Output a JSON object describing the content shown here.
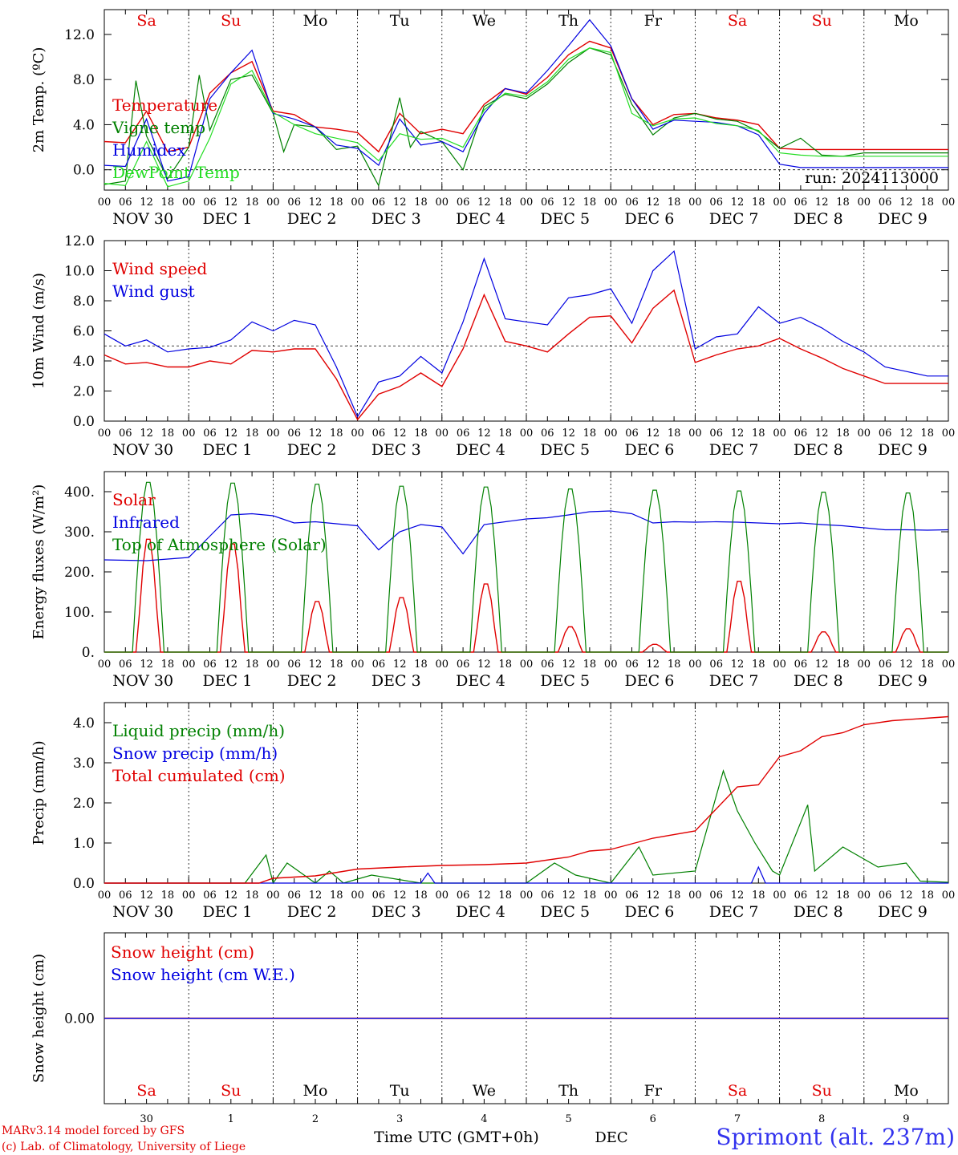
{
  "days": [
    "Sa",
    "Su",
    "Mo",
    "Tu",
    "We",
    "Th",
    "Fr",
    "Sa",
    "Su",
    "Mo"
  ],
  "weekend_days": [
    0,
    1,
    7,
    8
  ],
  "hour_labels": [
    "00",
    "06",
    "12",
    "18"
  ],
  "last_hour_label": "00",
  "date_labels": [
    "NOV 30",
    "DEC  1",
    "DEC  2",
    "DEC  3",
    "DEC  4",
    "DEC  5",
    "DEC  6",
    "DEC  7",
    "DEC  8",
    "DEC  9"
  ],
  "bottom_day_numbers": [
    "30",
    "1",
    "2",
    "3",
    "4",
    "5",
    "6",
    "7",
    "8",
    "9"
  ],
  "bottom_month": "DEC",
  "xlabel": "Time UTC (GMT+0h)",
  "run_label": "run: 2024113000",
  "location": "Sprimont (alt. 237m)",
  "credit_line1": "MARv3.14 model forced by GFS",
  "credit_line2": "(c) Lab. of Climatology, University of Liege",
  "colors": {
    "red": "#e00000",
    "green": "#008000",
    "blue": "#0000e0",
    "lightgreen": "#22dd22",
    "weekend": "#e00000",
    "weekday": "#000000"
  },
  "chart_data": [
    {
      "type": "line",
      "ylabel": "2m Temp. (ºC)",
      "ylim": [
        -1.8,
        14.2
      ],
      "yticks": [
        0,
        4,
        8,
        12
      ],
      "ytick_labels": [
        "0.0",
        "4.0",
        "8.0",
        "12.0"
      ],
      "dashed_y": 0,
      "x_unit": "hours since 2024-11-30 00 UTC",
      "series": [
        {
          "name": "Temperature",
          "color": "red",
          "x": [
            0,
            6,
            12,
            18,
            24,
            30,
            36,
            42,
            48,
            54,
            60,
            66,
            72,
            78,
            84,
            90,
            96,
            102,
            108,
            114,
            120,
            126,
            132,
            138,
            144,
            150,
            156,
            162,
            168,
            174,
            180,
            186,
            192,
            198,
            204,
            210,
            216,
            222,
            228,
            234,
            240
          ],
          "y": [
            2.5,
            2.4,
            5.2,
            1.6,
            2.0,
            6.8,
            8.6,
            9.6,
            5.2,
            4.9,
            3.8,
            3.6,
            3.3,
            1.6,
            5.0,
            3.2,
            3.6,
            3.2,
            5.8,
            7.2,
            6.7,
            8.2,
            10.2,
            11.4,
            10.8,
            6.3,
            4.0,
            4.9,
            5.0,
            4.6,
            4.4,
            4.0,
            1.9,
            1.8,
            1.8,
            1.8,
            1.8,
            1.8,
            1.8,
            1.8,
            1.8
          ]
        },
        {
          "name": "Vigne temp",
          "color": "green",
          "x": [
            0,
            6,
            9,
            12,
            18,
            24,
            27,
            30,
            36,
            42,
            48,
            51,
            54,
            60,
            66,
            72,
            78,
            84,
            87,
            90,
            96,
            102,
            108,
            114,
            120,
            126,
            132,
            138,
            144,
            150,
            156,
            162,
            168,
            174,
            180,
            186,
            192,
            198,
            204,
            210,
            216,
            222,
            228,
            234,
            240
          ],
          "y": [
            -1.3,
            -1.0,
            7.9,
            3.0,
            -0.8,
            2.0,
            8.4,
            3.5,
            8.0,
            8.4,
            5.0,
            1.6,
            4.0,
            3.8,
            1.8,
            2.1,
            -1.4,
            6.4,
            2.0,
            3.4,
            2.5,
            0.0,
            5.6,
            6.7,
            6.3,
            7.6,
            9.5,
            10.8,
            10.2,
            5.8,
            3.1,
            4.6,
            5.0,
            4.5,
            4.3,
            3.4,
            1.9,
            2.8,
            1.3,
            1.2,
            1.5,
            1.5,
            1.5,
            1.5,
            1.5
          ]
        },
        {
          "name": "Humidex",
          "color": "blue",
          "x": [
            0,
            6,
            12,
            18,
            24,
            30,
            36,
            42,
            48,
            54,
            60,
            66,
            72,
            78,
            84,
            90,
            96,
            102,
            108,
            114,
            120,
            126,
            132,
            138,
            144,
            150,
            156,
            162,
            168,
            174,
            180,
            186,
            192,
            198,
            204,
            210,
            216,
            222,
            228,
            234,
            240
          ],
          "y": [
            0.4,
            0.3,
            4.5,
            -1.0,
            -0.6,
            6.3,
            8.6,
            10.6,
            5.0,
            4.5,
            3.8,
            2.2,
            1.9,
            0.4,
            4.5,
            2.2,
            2.5,
            1.6,
            5.0,
            7.2,
            6.8,
            8.8,
            11.0,
            13.3,
            11.0,
            6.3,
            3.6,
            4.4,
            4.3,
            4.2,
            3.9,
            3.1,
            0.5,
            0.2,
            0.2,
            0.2,
            0.2,
            0.2,
            0.2,
            0.2,
            0.2
          ]
        },
        {
          "name": "DewPoint Temp",
          "color": "lightgreen",
          "x": [
            0,
            6,
            12,
            18,
            24,
            30,
            36,
            42,
            48,
            54,
            60,
            66,
            72,
            78,
            84,
            90,
            96,
            102,
            108,
            114,
            120,
            126,
            132,
            138,
            144,
            150,
            156,
            162,
            168,
            174,
            180,
            186,
            192,
            198,
            204,
            210,
            216,
            222,
            228,
            234,
            240
          ],
          "y": [
            -1.2,
            -1.4,
            2.5,
            -1.5,
            -1.0,
            2.8,
            7.6,
            8.8,
            5.1,
            4.0,
            3.2,
            2.8,
            2.4,
            0.8,
            3.2,
            2.7,
            2.8,
            2.0,
            5.3,
            6.8,
            6.5,
            7.8,
            9.8,
            10.8,
            10.4,
            5.0,
            3.9,
            4.5,
            4.6,
            4.1,
            3.9,
            3.5,
            1.5,
            1.3,
            1.2,
            1.2,
            1.2,
            1.2,
            1.2,
            1.2,
            1.2
          ]
        }
      ]
    },
    {
      "type": "line",
      "ylabel": "10m Wind (m/s)",
      "ylim": [
        0,
        12
      ],
      "yticks": [
        0,
        2,
        4,
        6,
        8,
        10,
        12
      ],
      "ytick_labels": [
        "0.0",
        "2.0",
        "4.0",
        "6.0",
        "8.0",
        "10.0",
        "12.0"
      ],
      "dashed_y": 5,
      "x_unit": "hours since 2024-11-30 00 UTC",
      "series": [
        {
          "name": "Wind speed",
          "color": "red",
          "x": [
            0,
            6,
            12,
            18,
            24,
            30,
            36,
            42,
            48,
            54,
            60,
            66,
            72,
            78,
            84,
            90,
            96,
            102,
            108,
            114,
            120,
            126,
            132,
            138,
            144,
            150,
            156,
            162,
            168,
            174,
            180,
            186,
            192,
            198,
            204,
            210,
            216,
            222,
            228,
            234,
            240
          ],
          "y": [
            4.4,
            3.8,
            3.9,
            3.6,
            3.6,
            4.0,
            3.8,
            4.7,
            4.6,
            4.8,
            4.8,
            2.8,
            0.1,
            1.8,
            2.3,
            3.2,
            2.3,
            4.8,
            8.4,
            5.3,
            5.0,
            4.6,
            5.8,
            6.9,
            7.0,
            5.2,
            7.5,
            8.7,
            3.9,
            4.4,
            4.8,
            5.0,
            5.5,
            4.8,
            4.2,
            3.5,
            3.0,
            2.5,
            2.5,
            2.5,
            2.5
          ]
        },
        {
          "name": "Wind gust",
          "color": "blue",
          "x": [
            0,
            6,
            12,
            18,
            24,
            30,
            36,
            42,
            48,
            54,
            60,
            66,
            72,
            78,
            84,
            90,
            96,
            102,
            108,
            114,
            120,
            126,
            132,
            138,
            144,
            150,
            156,
            162,
            168,
            174,
            180,
            186,
            192,
            198,
            204,
            210,
            216,
            222,
            228,
            234,
            240
          ],
          "y": [
            5.8,
            5.0,
            5.4,
            4.6,
            4.8,
            4.9,
            5.4,
            6.6,
            6.0,
            6.7,
            6.4,
            3.6,
            0.3,
            2.6,
            3.0,
            4.3,
            3.2,
            6.6,
            10.8,
            6.8,
            6.6,
            6.4,
            8.2,
            8.4,
            8.8,
            6.5,
            10.0,
            11.3,
            4.8,
            5.6,
            5.8,
            7.6,
            6.5,
            6.9,
            6.2,
            5.3,
            4.6,
            3.6,
            3.3,
            3.0,
            3.0
          ]
        }
      ]
    },
    {
      "type": "line",
      "ylabel": "Energy fluxes (W/m²)",
      "ylim": [
        0,
        450
      ],
      "yticks": [
        0,
        100,
        200,
        300,
        400
      ],
      "ytick_labels": [
        "0.",
        "100.",
        "200.",
        "300.",
        "400."
      ],
      "x_unit": "hours since 2024-11-30 00 UTC",
      "series": [
        {
          "name": "Solar",
          "color": "red",
          "diurnal_peaks": [
            290,
            278,
            130,
            140,
            175,
            65,
            20,
            182,
            52,
            60
          ]
        },
        {
          "name": "Infrared",
          "color": "blue",
          "x": [
            0,
            12,
            24,
            36,
            42,
            48,
            54,
            60,
            66,
            72,
            78,
            84,
            90,
            96,
            102,
            108,
            114,
            120,
            126,
            132,
            138,
            144,
            150,
            156,
            162,
            168,
            174,
            180,
            186,
            192,
            198,
            204,
            210,
            216,
            222,
            228,
            234,
            240
          ],
          "y": [
            230,
            228,
            236,
            342,
            345,
            340,
            322,
            325,
            320,
            315,
            255,
            300,
            318,
            312,
            245,
            318,
            325,
            332,
            335,
            342,
            350,
            352,
            345,
            322,
            325,
            324,
            325,
            324,
            322,
            320,
            322,
            318,
            315,
            310,
            305,
            305,
            304,
            305
          ]
        },
        {
          "name": "Top of Atmosphere (Solar)",
          "color": "green",
          "diurnal_peaks": [
            430,
            428,
            425,
            420,
            418,
            413,
            410,
            408,
            405,
            403
          ]
        }
      ]
    },
    {
      "type": "line",
      "ylabel": "Precip (mm/h)",
      "ylim": [
        0,
        4.5
      ],
      "yticks": [
        0,
        1,
        2,
        3,
        4
      ],
      "ytick_labels": [
        "0.0",
        "1.0",
        "2.0",
        "3.0",
        "4.0"
      ],
      "x_unit": "hours since 2024-11-30 00 UTC",
      "series": [
        {
          "name": "Liquid precip (mm/h)",
          "color": "green",
          "x": [
            0,
            40,
            46,
            48,
            52,
            60,
            64,
            68,
            76,
            90,
            96,
            120,
            128,
            134,
            144,
            152,
            156,
            168,
            176,
            180,
            185,
            190,
            192,
            200,
            202,
            210,
            220,
            228,
            232,
            240
          ],
          "y": [
            0,
            0,
            0.7,
            0,
            0.5,
            0,
            0.3,
            0,
            0.2,
            0,
            0,
            0,
            0.5,
            0.2,
            0,
            0.9,
            0.2,
            0.3,
            2.8,
            1.8,
            1.0,
            0.3,
            0.2,
            1.95,
            0.3,
            0.9,
            0.4,
            0.5,
            0.05,
            0.02
          ]
        },
        {
          "name": "Snow precip (mm/h)",
          "color": "blue",
          "x": [
            0,
            90,
            92,
            94,
            184,
            186,
            188,
            240
          ],
          "y": [
            0,
            0,
            0.25,
            0,
            0,
            0.4,
            0,
            0
          ]
        },
        {
          "name": "Total cumulated (cm)",
          "color": "red",
          "x": [
            0,
            44,
            48,
            60,
            72,
            84,
            96,
            108,
            120,
            132,
            138,
            144,
            156,
            168,
            180,
            186,
            192,
            198,
            204,
            210,
            216,
            224,
            232,
            240
          ],
          "y": [
            0,
            0,
            0.12,
            0.18,
            0.35,
            0.4,
            0.44,
            0.46,
            0.5,
            0.65,
            0.8,
            0.84,
            1.12,
            1.3,
            2.4,
            2.45,
            3.15,
            3.3,
            3.65,
            3.75,
            3.95,
            4.05,
            4.1,
            4.15
          ]
        }
      ]
    },
    {
      "type": "line",
      "ylabel": "Snow height (cm)",
      "ylim": [
        -1,
        1
      ],
      "yticks": [
        0
      ],
      "ytick_labels": [
        "0.00"
      ],
      "x_unit": "hours since 2024-11-30 00 UTC",
      "series": [
        {
          "name": "Snow height (cm)",
          "color": "red",
          "x": [
            0,
            240
          ],
          "y": [
            0,
            0
          ]
        },
        {
          "name": "Snow height (cm W.E.)",
          "color": "blue",
          "x": [
            0,
            240
          ],
          "y": [
            0,
            0
          ]
        }
      ]
    }
  ]
}
